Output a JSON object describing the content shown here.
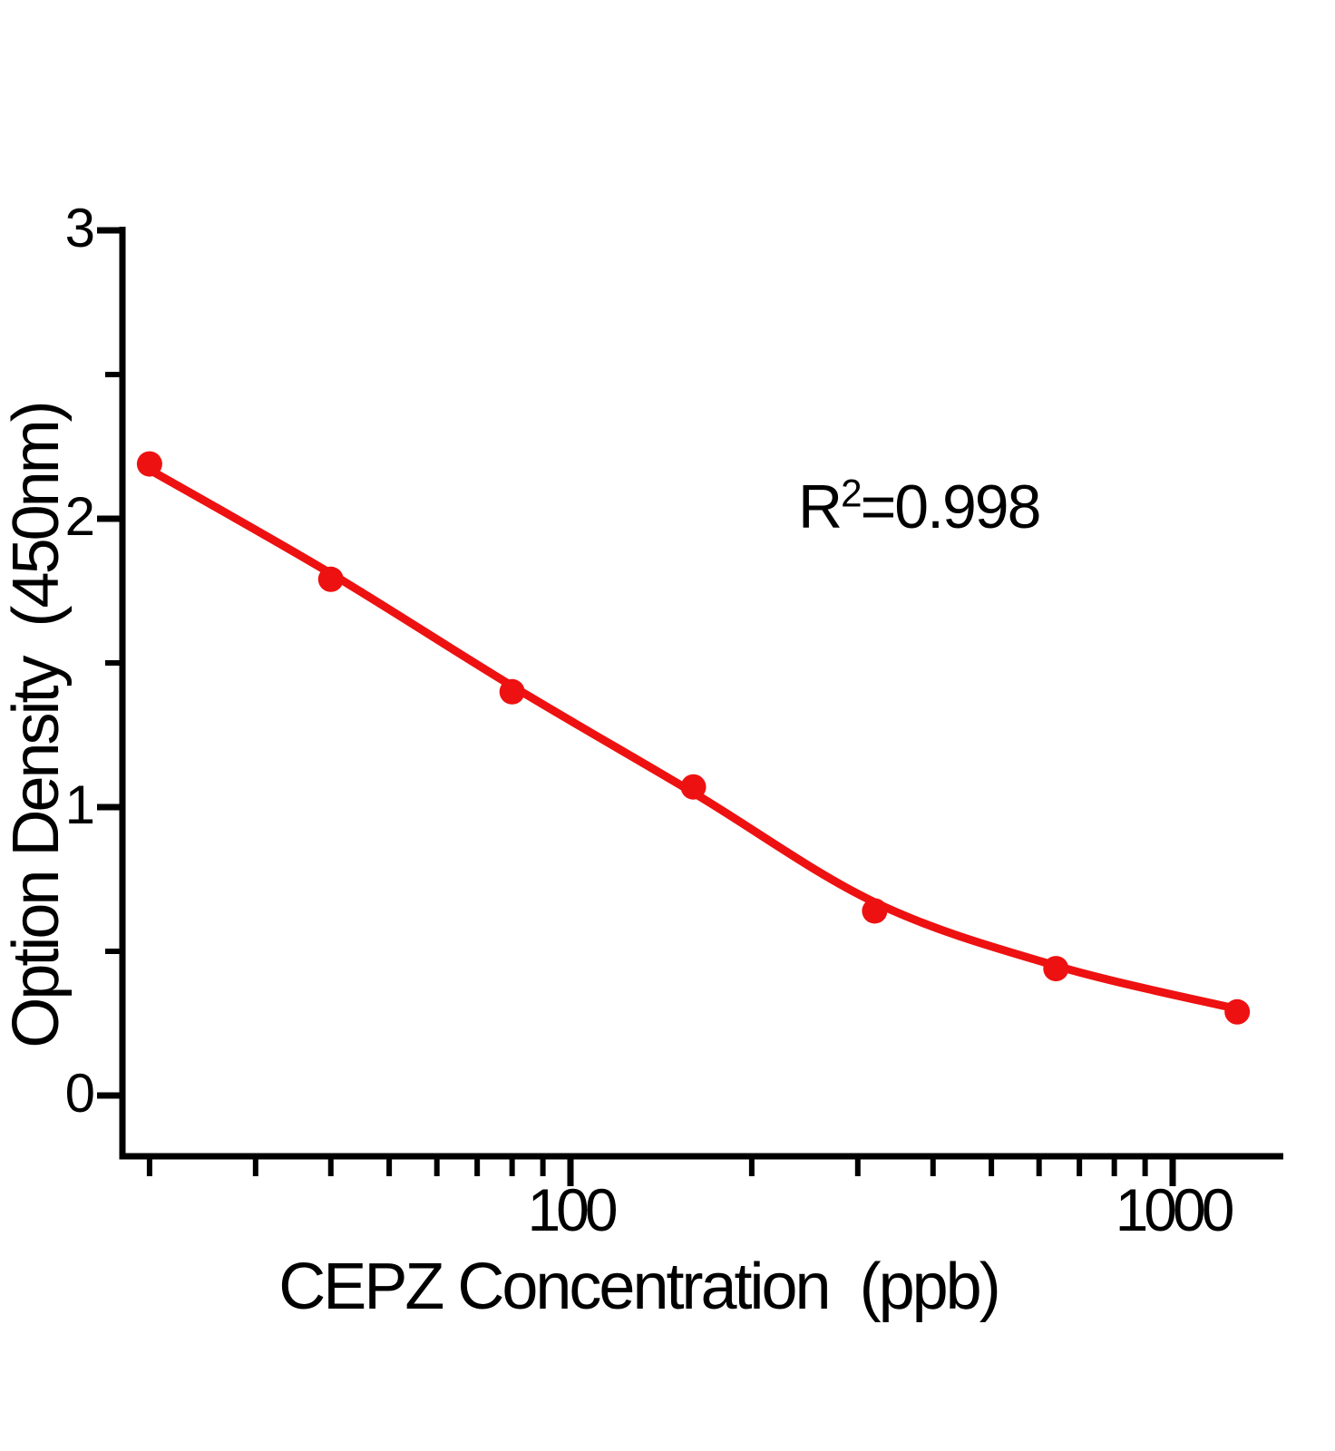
{
  "colors": {
    "series_red": "#ee1111",
    "axis_black": "#000000",
    "background": "#ffffff"
  },
  "chart_data": {
    "type": "scatter",
    "title": "",
    "xlabel": "CEPZ Concentration  (ppb)",
    "ylabel": "Option Density  (450nm)",
    "annotation": {
      "base": "R",
      "sup": "2",
      "rest": "=0.998",
      "text": "R2=0.998"
    },
    "x_axis": {
      "scale": "log",
      "major_ticks": [
        100,
        1000
      ],
      "major_tick_labels": [
        "100",
        "1000"
      ],
      "minor_ticks": [
        20,
        30,
        40,
        50,
        60,
        70,
        80,
        90,
        200,
        300,
        400,
        500,
        600,
        700,
        800,
        900
      ],
      "range_shown": [
        18,
        1600
      ]
    },
    "y_axis": {
      "scale": "linear",
      "major_ticks": [
        0,
        1,
        2,
        3
      ],
      "major_tick_labels": [
        "0",
        "1",
        "2",
        "3"
      ],
      "minor_ticks": [
        0.5,
        1.5,
        2.5
      ],
      "range": [
        0,
        3
      ]
    },
    "series": [
      {
        "name": "CEPZ standard data points",
        "kind": "scatter",
        "color": "#ee1111",
        "points": [
          [
            20,
            2.19
          ],
          [
            40,
            1.79
          ],
          [
            80,
            1.4
          ],
          [
            160,
            1.07
          ],
          [
            320,
            0.64
          ],
          [
            640,
            0.44
          ],
          [
            1280,
            0.29
          ]
        ]
      },
      {
        "name": "fitted standard curve",
        "kind": "line",
        "color": "#ee1111",
        "points": [
          [
            20,
            2.17
          ],
          [
            40,
            1.81
          ],
          [
            80,
            1.42
          ],
          [
            160,
            1.05
          ],
          [
            320,
            0.67
          ],
          [
            640,
            0.45
          ],
          [
            1280,
            0.3
          ]
        ]
      }
    ],
    "legend": null,
    "grid": false
  }
}
